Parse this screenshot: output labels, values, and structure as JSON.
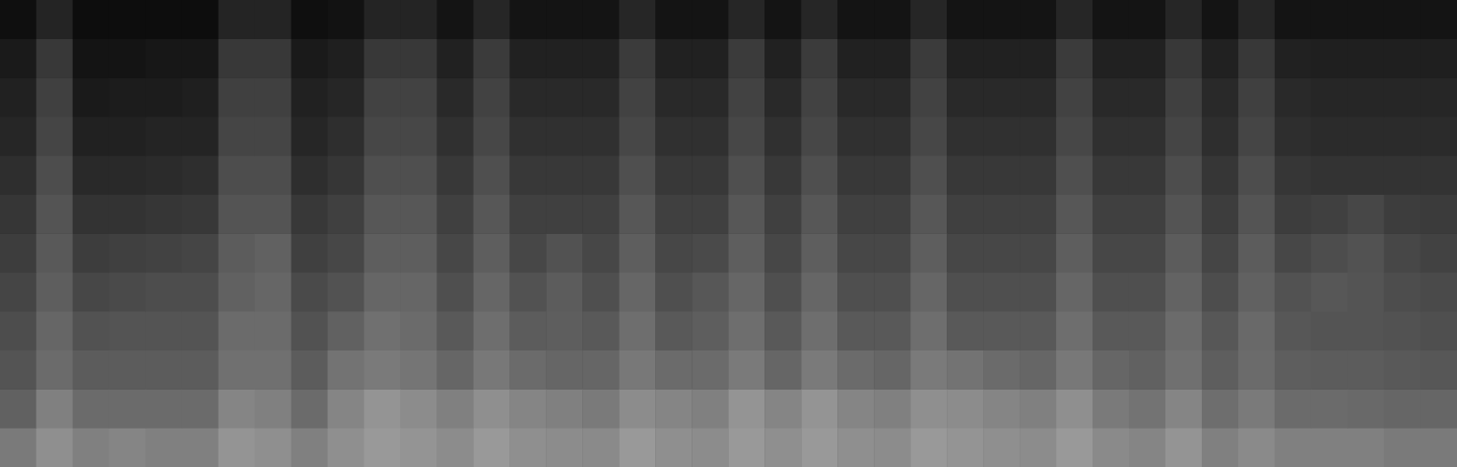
{
  "chart_data": {
    "type": "heatmap",
    "value_range": [
      0,
      100
    ],
    "color": "#ffffff",
    "tick_labels": false,
    "cells": [
      [
        48,
        56,
        50,
        52,
        50,
        50,
        58,
        56,
        50,
        56,
        60,
        58,
        55,
        60,
        56,
        55,
        54,
        60,
        56,
        55,
        60,
        56,
        60,
        56,
        55,
        60,
        58,
        56,
        55,
        60,
        54,
        52,
        58,
        50,
        54,
        50,
        50,
        50,
        48,
        48
      ],
      [
        38,
        50,
        42,
        42,
        42,
        42,
        52,
        50,
        42,
        52,
        58,
        55,
        50,
        56,
        52,
        50,
        48,
        55,
        52,
        50,
        58,
        52,
        58,
        52,
        50,
        56,
        55,
        52,
        50,
        56,
        48,
        45,
        52,
        43,
        48,
        42,
        42,
        41,
        40,
        40
      ],
      [
        33,
        42,
        36,
        36,
        36,
        36,
        44,
        44,
        36,
        45,
        48,
        46,
        40,
        47,
        42,
        40,
        40,
        47,
        42,
        42,
        48,
        40,
        48,
        42,
        40,
        48,
        45,
        42,
        40,
        47,
        40,
        38,
        44,
        37,
        42,
        37,
        36,
        36,
        35,
        34
      ],
      [
        30,
        40,
        32,
        33,
        33,
        33,
        42,
        42,
        32,
        38,
        44,
        42,
        35,
        43,
        36,
        37,
        35,
        43,
        35,
        37,
        43,
        35,
        43,
        35,
        35,
        43,
        35,
        35,
        35,
        43,
        35,
        35,
        42,
        34,
        41,
        34,
        33,
        33,
        32,
        31
      ],
      [
        27,
        37,
        28,
        29,
        30,
        30,
        38,
        40,
        29,
        32,
        40,
        40,
        31,
        40,
        32,
        36,
        31,
        40,
        31,
        34,
        40,
        31,
        40,
        31,
        31,
        40,
        31,
        31,
        31,
        40,
        31,
        31,
        39,
        30,
        38,
        32,
        34,
        33,
        30,
        29
      ],
      [
        24,
        35,
        24,
        25,
        26,
        27,
        36,
        38,
        25,
        28,
        37,
        37,
        28,
        37,
        28,
        32,
        28,
        37,
        28,
        29,
        37,
        28,
        37,
        28,
        28,
        37,
        28,
        28,
        28,
        37,
        28,
        28,
        36,
        27,
        36,
        28,
        30,
        32,
        28,
        26
      ],
      [
        21,
        33,
        20,
        20,
        21,
        22,
        33,
        33,
        22,
        25,
        34,
        34,
        25,
        34,
        25,
        25,
        25,
        34,
        25,
        25,
        34,
        25,
        34,
        25,
        25,
        34,
        25,
        25,
        25,
        34,
        25,
        25,
        33,
        24,
        33,
        24,
        25,
        28,
        24,
        23
      ],
      [
        18,
        30,
        16,
        16,
        17,
        18,
        30,
        30,
        18,
        21,
        31,
        31,
        22,
        31,
        22,
        22,
        22,
        31,
        22,
        22,
        31,
        22,
        31,
        22,
        22,
        31,
        22,
        22,
        22,
        31,
        22,
        22,
        30,
        21,
        30,
        21,
        20,
        20,
        20,
        20
      ],
      [
        15,
        27,
        13,
        13,
        14,
        14,
        27,
        27,
        15,
        18,
        28,
        28,
        19,
        28,
        19,
        19,
        19,
        28,
        19,
        19,
        28,
        19,
        28,
        19,
        19,
        28,
        19,
        19,
        19,
        28,
        19,
        19,
        27,
        18,
        27,
        18,
        17,
        17,
        17,
        17
      ],
      [
        13,
        25,
        10,
        11,
        11,
        12,
        25,
        25,
        13,
        15,
        26,
        26,
        16,
        26,
        16,
        16,
        16,
        26,
        16,
        16,
        26,
        16,
        26,
        16,
        16,
        26,
        16,
        16,
        16,
        26,
        16,
        16,
        25,
        16,
        25,
        16,
        15,
        15,
        15,
        15
      ],
      [
        10,
        22,
        8,
        8,
        9,
        9,
        22,
        22,
        10,
        12,
        22,
        22,
        13,
        23,
        13,
        13,
        13,
        23,
        13,
        13,
        23,
        13,
        23,
        13,
        13,
        23,
        13,
        13,
        13,
        23,
        13,
        13,
        22,
        13,
        22,
        13,
        12,
        12,
        12,
        12
      ],
      [
        6,
        14,
        5,
        5,
        5,
        5,
        14,
        14,
        6,
        7,
        14,
        14,
        8,
        15,
        8,
        8,
        8,
        15,
        8,
        8,
        15,
        8,
        15,
        8,
        8,
        15,
        8,
        8,
        8,
        15,
        8,
        8,
        15,
        8,
        15,
        8,
        8,
        8,
        8,
        8
      ]
    ]
  }
}
